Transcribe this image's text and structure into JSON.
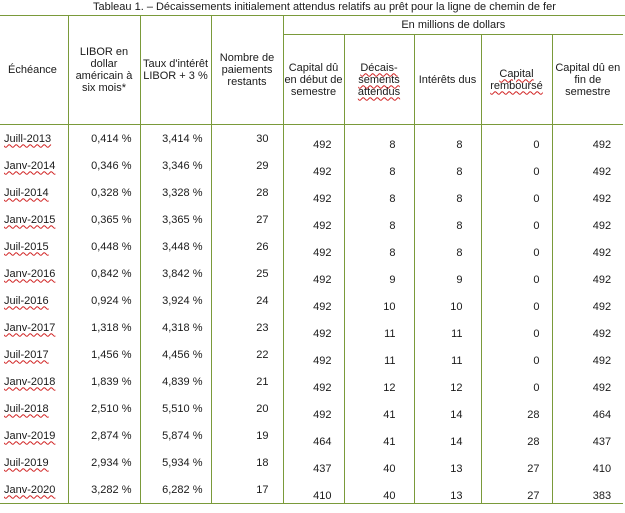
{
  "title": "Tableau 1. – Décaissements initialement attendus relatifs au prêt pour la ligne de chemin de fer",
  "headers": {
    "group": "En millions de dollars",
    "echeance": "Échéance",
    "libor": "LIBOR en dollar américain à six mois*",
    "taux": "Taux d'intérêt LIBOR + 3 %",
    "nombre": "Nombre de paiements restants",
    "capital_debut": "Capital dû en début de semestre",
    "decaissements": "Décais-sements attendus",
    "interets": "Intérêts dus",
    "rembourse": "Capital remboursé",
    "capital_fin": "Capital dû en fin de semestre"
  },
  "rows": [
    {
      "echeance": "Juill-2013",
      "libor": "0,414 %",
      "taux": "3,414 %",
      "nombre": "30",
      "capital_debut": "492",
      "decaissements": "8",
      "interets": "8",
      "rembourse": "0",
      "capital_fin": "492"
    },
    {
      "echeance": "Janv-2014",
      "libor": "0,346 %",
      "taux": "3,346 %",
      "nombre": "29",
      "capital_debut": "492",
      "decaissements": "8",
      "interets": "8",
      "rembourse": "0",
      "capital_fin": "492"
    },
    {
      "echeance": "Juil-2014",
      "libor": "0,328 %",
      "taux": "3,328 %",
      "nombre": "28",
      "capital_debut": "492",
      "decaissements": "8",
      "interets": "8",
      "rembourse": "0",
      "capital_fin": "492"
    },
    {
      "echeance": "Janv-2015",
      "libor": "0,365 %",
      "taux": "3,365 %",
      "nombre": "27",
      "capital_debut": "492",
      "decaissements": "8",
      "interets": "8",
      "rembourse": "0",
      "capital_fin": "492"
    },
    {
      "echeance": "Juil-2015",
      "libor": "0,448 %",
      "taux": "3,448 %",
      "nombre": "26",
      "capital_debut": "492",
      "decaissements": "8",
      "interets": "8",
      "rembourse": "0",
      "capital_fin": "492"
    },
    {
      "echeance": "Janv-2016",
      "libor": "0,842 %",
      "taux": "3,842 %",
      "nombre": "25",
      "capital_debut": "492",
      "decaissements": "9",
      "interets": "9",
      "rembourse": "0",
      "capital_fin": "492"
    },
    {
      "echeance": "Juil-2016",
      "libor": "0,924 %",
      "taux": "3,924 %",
      "nombre": "24",
      "capital_debut": "492",
      "decaissements": "10",
      "interets": "10",
      "rembourse": "0",
      "capital_fin": "492"
    },
    {
      "echeance": "Janv-2017",
      "libor": "1,318 %",
      "taux": "4,318 %",
      "nombre": "23",
      "capital_debut": "492",
      "decaissements": "11",
      "interets": "11",
      "rembourse": "0",
      "capital_fin": "492"
    },
    {
      "echeance": "Juil-2017",
      "libor": "1,456 %",
      "taux": "4,456 %",
      "nombre": "22",
      "capital_debut": "492",
      "decaissements": "11",
      "interets": "11",
      "rembourse": "0",
      "capital_fin": "492"
    },
    {
      "echeance": "Janv-2018",
      "libor": "1,839 %",
      "taux": "4,839 %",
      "nombre": "21",
      "capital_debut": "492",
      "decaissements": "12",
      "interets": "12",
      "rembourse": "0",
      "capital_fin": "492"
    },
    {
      "echeance": "Juil-2018",
      "libor": "2,510 %",
      "taux": "5,510 %",
      "nombre": "20",
      "capital_debut": "492",
      "decaissements": "41",
      "interets": "14",
      "rembourse": "28",
      "capital_fin": "464"
    },
    {
      "echeance": "Janv-2019",
      "libor": "2,874 %",
      "taux": "5,874 %",
      "nombre": "19",
      "capital_debut": "464",
      "decaissements": "41",
      "interets": "14",
      "rembourse": "28",
      "capital_fin": "437"
    },
    {
      "echeance": "Juil-2019",
      "libor": "2,934 %",
      "taux": "5,934 %",
      "nombre": "18",
      "capital_debut": "437",
      "decaissements": "40",
      "interets": "13",
      "rembourse": "27",
      "capital_fin": "410"
    },
    {
      "echeance": "Janv-2020",
      "libor": "3,282 %",
      "taux": "6,282 %",
      "nombre": "17",
      "capital_debut": "410",
      "decaissements": "40",
      "interets": "13",
      "rembourse": "27",
      "capital_fin": "383"
    }
  ]
}
